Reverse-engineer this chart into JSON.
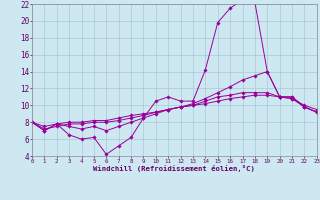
{
  "xlabel": "Windchill (Refroidissement éolien,°C)",
  "background_color": "#cde8f0",
  "grid_color": "#aac8d8",
  "line_color": "#990099",
  "x_min": 0,
  "x_max": 23,
  "y_min": 4,
  "y_max": 22,
  "x_ticks": [
    0,
    1,
    2,
    3,
    4,
    5,
    6,
    7,
    8,
    9,
    10,
    11,
    12,
    13,
    14,
    15,
    16,
    17,
    18,
    19,
    20,
    21,
    22,
    23
  ],
  "y_ticks": [
    4,
    6,
    8,
    10,
    12,
    14,
    16,
    18,
    20,
    22
  ],
  "series": [
    {
      "x": [
        0,
        1,
        2,
        3,
        4,
        5,
        6,
        7,
        8,
        9,
        10,
        11,
        12,
        13,
        14,
        15,
        16,
        17,
        18,
        19,
        20,
        21,
        22,
        23
      ],
      "y": [
        8.0,
        7.0,
        7.8,
        6.5,
        6.0,
        6.2,
        4.2,
        5.2,
        6.2,
        8.5,
        10.5,
        11.0,
        10.5,
        10.5,
        14.2,
        19.8,
        21.5,
        22.5,
        22.2,
        14.0,
        11.0,
        11.0,
        9.8,
        9.2
      ]
    },
    {
      "x": [
        0,
        1,
        2,
        3,
        4,
        5,
        6,
        7,
        8,
        9,
        10,
        11,
        12,
        13,
        14,
        15,
        16,
        17,
        18,
        19,
        20,
        21,
        22,
        23
      ],
      "y": [
        8.0,
        7.0,
        7.8,
        7.5,
        7.2,
        7.5,
        7.0,
        7.5,
        8.0,
        8.5,
        9.0,
        9.5,
        9.8,
        10.2,
        10.8,
        11.5,
        12.2,
        13.0,
        13.5,
        14.0,
        11.0,
        11.0,
        9.8,
        9.2
      ]
    },
    {
      "x": [
        0,
        1,
        2,
        3,
        4,
        5,
        6,
        7,
        8,
        9,
        10,
        11,
        12,
        13,
        14,
        15,
        16,
        17,
        18,
        19,
        20,
        21,
        22,
        23
      ],
      "y": [
        8.0,
        7.2,
        7.5,
        7.8,
        7.8,
        8.0,
        8.0,
        8.2,
        8.5,
        8.8,
        9.2,
        9.5,
        9.8,
        10.0,
        10.5,
        11.0,
        11.2,
        11.5,
        11.5,
        11.5,
        11.0,
        10.8,
        10.0,
        9.5
      ]
    },
    {
      "x": [
        0,
        1,
        2,
        3,
        4,
        5,
        6,
        7,
        8,
        9,
        10,
        11,
        12,
        13,
        14,
        15,
        16,
        17,
        18,
        19,
        20,
        21,
        22,
        23
      ],
      "y": [
        8.0,
        7.5,
        7.8,
        8.0,
        8.0,
        8.2,
        8.2,
        8.5,
        8.8,
        9.0,
        9.2,
        9.5,
        9.8,
        10.0,
        10.2,
        10.5,
        10.8,
        11.0,
        11.2,
        11.2,
        11.0,
        10.8,
        9.8,
        9.2
      ]
    }
  ]
}
